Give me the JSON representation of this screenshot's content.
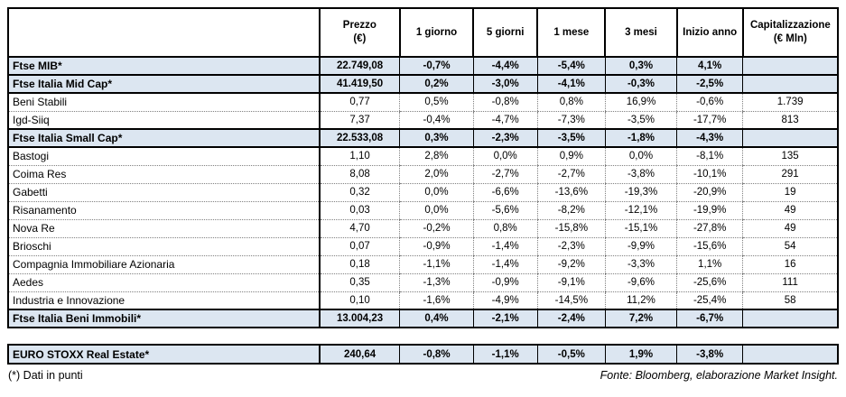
{
  "colors": {
    "index_row_bg": "#dce6f1",
    "border_dark": "#000000",
    "grid_dotted": "#808080"
  },
  "table": {
    "headers": [
      {
        "lines": [
          "Prezzo",
          "(€)"
        ]
      },
      {
        "lines": [
          "1 giorno"
        ]
      },
      {
        "lines": [
          "5 giorni"
        ]
      },
      {
        "lines": [
          "1 mese"
        ]
      },
      {
        "lines": [
          "3 mesi"
        ]
      },
      {
        "lines": [
          "Inizio anno"
        ]
      },
      {
        "lines": [
          "Capitalizzazione",
          "(€ Mln)"
        ]
      }
    ],
    "rows": [
      {
        "label": "Ftse MIB*",
        "type": "index",
        "values": [
          "22.749,08",
          "-0,7%",
          "-4,4%",
          "-5,4%",
          "0,3%",
          "4,1%",
          ""
        ]
      },
      {
        "label": "Ftse Italia Mid Cap*",
        "type": "index",
        "values": [
          "41.419,50",
          "0,2%",
          "-3,0%",
          "-4,1%",
          "-0,3%",
          "-2,5%",
          ""
        ]
      },
      {
        "label": "Beni Stabili",
        "type": "stock",
        "values": [
          "0,77",
          "0,5%",
          "-0,8%",
          "0,8%",
          "16,9%",
          "-0,6%",
          "1.739"
        ]
      },
      {
        "label": "Igd-Siiq",
        "type": "stock",
        "values": [
          "7,37",
          "-0,4%",
          "-4,7%",
          "-7,3%",
          "-3,5%",
          "-17,7%",
          "813"
        ]
      },
      {
        "label": "Ftse Italia Small Cap*",
        "type": "index",
        "values": [
          "22.533,08",
          "0,3%",
          "-2,3%",
          "-3,5%",
          "-1,8%",
          "-4,3%",
          ""
        ]
      },
      {
        "label": "Bastogi",
        "type": "stock",
        "values": [
          "1,10",
          "2,8%",
          "0,0%",
          "0,9%",
          "0,0%",
          "-8,1%",
          "135"
        ]
      },
      {
        "label": "Coima Res",
        "type": "stock",
        "values": [
          "8,08",
          "2,0%",
          "-2,7%",
          "-2,7%",
          "-3,8%",
          "-10,1%",
          "291"
        ]
      },
      {
        "label": "Gabetti",
        "type": "stock",
        "values": [
          "0,32",
          "0,0%",
          "-6,6%",
          "-13,6%",
          "-19,3%",
          "-20,9%",
          "19"
        ]
      },
      {
        "label": "Risanamento",
        "type": "stock",
        "values": [
          "0,03",
          "0,0%",
          "-5,6%",
          "-8,2%",
          "-12,1%",
          "-19,9%",
          "49"
        ]
      },
      {
        "label": "Nova Re",
        "type": "stock",
        "values": [
          "4,70",
          "-0,2%",
          "0,8%",
          "-15,8%",
          "-15,1%",
          "-27,8%",
          "49"
        ]
      },
      {
        "label": "Brioschi",
        "type": "stock",
        "values": [
          "0,07",
          "-0,9%",
          "-1,4%",
          "-2,3%",
          "-9,9%",
          "-15,6%",
          "54"
        ]
      },
      {
        "label": "Compagnia Immobiliare Azionaria",
        "type": "stock",
        "values": [
          "0,18",
          "-1,1%",
          "-1,4%",
          "-9,2%",
          "-3,3%",
          "1,1%",
          "16"
        ]
      },
      {
        "label": "Aedes",
        "type": "stock",
        "values": [
          "0,35",
          "-1,3%",
          "-0,9%",
          "-9,1%",
          "-9,6%",
          "-25,6%",
          "111"
        ]
      },
      {
        "label": "Industria e Innovazione",
        "type": "stock",
        "values": [
          "0,10",
          "-1,6%",
          "-4,9%",
          "-14,5%",
          "11,2%",
          "-25,4%",
          "58"
        ]
      },
      {
        "label": "Ftse Italia Beni Immobili*",
        "type": "index",
        "values": [
          "13.004,23",
          "0,4%",
          "-2,1%",
          "-2,4%",
          "7,2%",
          "-6,7%",
          ""
        ]
      }
    ]
  },
  "euro_table": {
    "rows": [
      {
        "label": "EURO STOXX Real Estate*",
        "type": "index",
        "values": [
          "240,64",
          "-0,8%",
          "-1,1%",
          "-0,5%",
          "1,9%",
          "-3,8%",
          ""
        ]
      }
    ]
  },
  "footer": {
    "left": "(*) Dati in punti",
    "right": "Fonte: Bloomberg, elaborazione Market Insight."
  }
}
